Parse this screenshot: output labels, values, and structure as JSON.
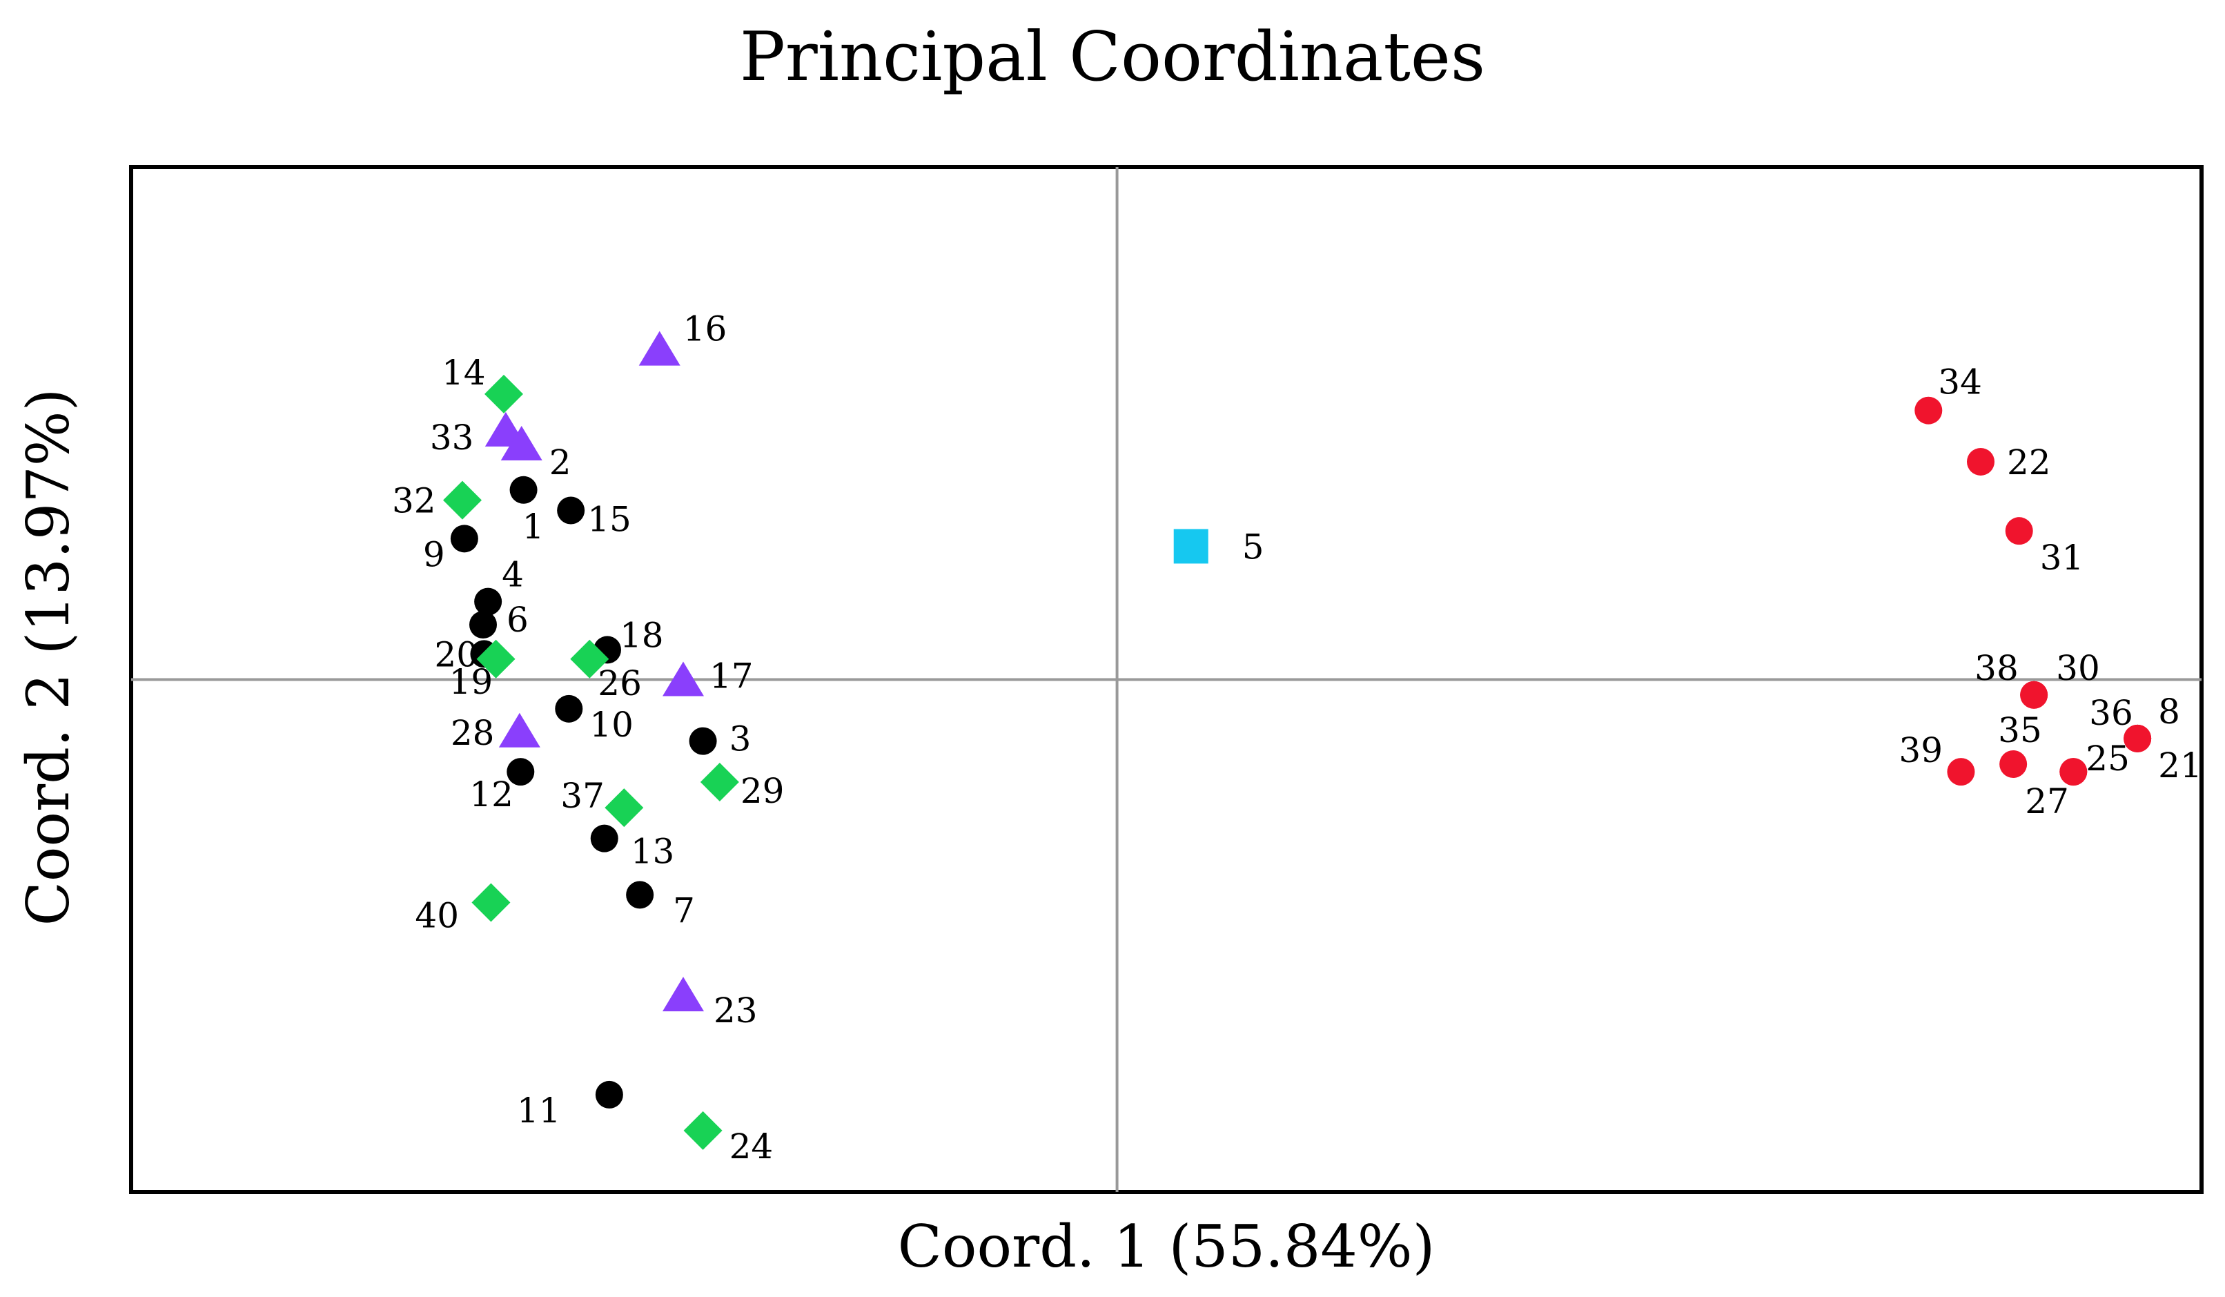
{
  "chart_data": {
    "type": "scatter",
    "title": "Principal Coordinates",
    "xlabel": "Coord. 1 (55.84%)",
    "ylabel": "Coord. 2 (13.97%)",
    "xlim": [
      -1.0,
      1.1
    ],
    "ylim": [
      -1.0,
      1.0
    ],
    "grid": false,
    "reference_lines": {
      "x": 0,
      "y": 0
    },
    "legend": null,
    "group_styles": [
      {
        "group": 1,
        "marker": "circle",
        "color": "#000000"
      },
      {
        "group": 2,
        "marker": "triangle",
        "color": "#8a3ffc"
      },
      {
        "group": 3,
        "marker": "diamond",
        "color": "#18d255"
      },
      {
        "group": 4,
        "marker": "square",
        "color": "#16c8f0"
      },
      {
        "group": 5,
        "marker": "circle",
        "color": "#f0142d"
      }
    ],
    "points": [
      {
        "label": "1",
        "x": -0.602,
        "y": 0.37,
        "group": 1,
        "label_dx": -2,
        "label_dy": 70
      },
      {
        "label": "4",
        "x": -0.638,
        "y": 0.152,
        "group": 1,
        "label_dx": 20,
        "label_dy": -22
      },
      {
        "label": "6",
        "x": -0.643,
        "y": 0.107,
        "group": 1,
        "label_dx": 34,
        "label_dy": 10
      },
      {
        "label": "20",
        "x": -0.642,
        "y": 0.05,
        "group": 1,
        "label_dx": -72,
        "label_dy": 18
      },
      {
        "label": "9",
        "x": -0.662,
        "y": 0.275,
        "group": 1,
        "label_dx": -60,
        "label_dy": 40
      },
      {
        "label": "15",
        "x": -0.554,
        "y": 0.33,
        "group": 1,
        "label_dx": 24,
        "label_dy": 30
      },
      {
        "label": "18",
        "x": -0.517,
        "y": 0.058,
        "group": 1,
        "label_dx": 18,
        "label_dy": -4
      },
      {
        "label": "10",
        "x": -0.556,
        "y": -0.057,
        "group": 1,
        "label_dx": 30,
        "label_dy": 40
      },
      {
        "label": "3",
        "x": -0.42,
        "y": -0.12,
        "group": 1,
        "label_dx": 38,
        "label_dy": 14
      },
      {
        "label": "12",
        "x": -0.605,
        "y": -0.18,
        "group": 1,
        "label_dx": -74,
        "label_dy": 50
      },
      {
        "label": "13",
        "x": -0.52,
        "y": -0.31,
        "group": 1,
        "label_dx": 38,
        "label_dy": 36
      },
      {
        "label": "7",
        "x": -0.484,
        "y": -0.42,
        "group": 1,
        "label_dx": 48,
        "label_dy": 40
      },
      {
        "label": "11",
        "x": -0.515,
        "y": -0.81,
        "group": 1,
        "label_dx": -134,
        "label_dy": 40
      },
      {
        "label": "16",
        "x": -0.464,
        "y": 0.645,
        "group": 2,
        "label_dx": 34,
        "label_dy": -12
      },
      {
        "label": "33",
        "x": -0.62,
        "y": 0.487,
        "group": 2,
        "label_dx": -110,
        "label_dy": 28
      },
      {
        "label": "2",
        "x": -0.604,
        "y": 0.46,
        "group": 2,
        "label_dx": 40,
        "label_dy": 44
      },
      {
        "label": "17",
        "x": -0.44,
        "y": 0.0,
        "group": 2,
        "label_dx": 38,
        "label_dy": 12
      },
      {
        "label": "28",
        "x": -0.606,
        "y": -0.1,
        "group": 2,
        "label_dx": -100,
        "label_dy": 20
      },
      {
        "label": "23",
        "x": -0.44,
        "y": -0.615,
        "group": 2,
        "label_dx": 44,
        "label_dy": 40
      },
      {
        "label": "14",
        "x": -0.622,
        "y": 0.557,
        "group": 3,
        "label_dx": -90,
        "label_dy": -14
      },
      {
        "label": "32",
        "x": -0.664,
        "y": 0.35,
        "group": 3,
        "label_dx": -102,
        "label_dy": 18
      },
      {
        "label": "19",
        "x": -0.63,
        "y": 0.04,
        "group": 3,
        "label_dx": -68,
        "label_dy": 50
      },
      {
        "label": "26",
        "x": -0.535,
        "y": 0.04,
        "group": 3,
        "label_dx": 12,
        "label_dy": 52
      },
      {
        "label": "29",
        "x": -0.403,
        "y": -0.2,
        "group": 3,
        "label_dx": 30,
        "label_dy": 30
      },
      {
        "label": "37",
        "x": -0.5,
        "y": -0.25,
        "group": 3,
        "label_dx": -92,
        "label_dy": 0
      },
      {
        "label": "40",
        "x": -0.635,
        "y": -0.435,
        "group": 3,
        "label_dx": -110,
        "label_dy": 36
      },
      {
        "label": "24",
        "x": -0.42,
        "y": -0.88,
        "group": 3,
        "label_dx": 38,
        "label_dy": 40
      },
      {
        "label": "5",
        "x": 0.075,
        "y": 0.26,
        "group": 4,
        "label_dx": 74,
        "label_dy": 18
      },
      {
        "label": "34",
        "x": 0.823,
        "y": 0.525,
        "group": 5,
        "label_dx": 14,
        "label_dy": -24
      },
      {
        "label": "22",
        "x": 0.876,
        "y": 0.425,
        "group": 5,
        "label_dx": 38,
        "label_dy": 18
      },
      {
        "label": "31",
        "x": 0.915,
        "y": 0.29,
        "group": 5,
        "label_dx": 30,
        "label_dy": 56
      },
      {
        "label": "30",
        "x": 0.93,
        "y": -0.03,
        "group": 5,
        "label_dx": 32,
        "label_dy": -22
      },
      {
        "label": "38",
        "x": 0.93,
        "y": -0.03,
        "group": 5,
        "label_dx": -86,
        "label_dy": -22
      },
      {
        "label": "36",
        "x": 1.035,
        "y": -0.115,
        "group": 5,
        "label_dx": -70,
        "label_dy": -20
      },
      {
        "label": "8",
        "x": 1.035,
        "y": -0.115,
        "group": 5,
        "label_dx": 30,
        "label_dy": -22
      },
      {
        "label": "21",
        "x": 1.035,
        "y": -0.115,
        "group": 5,
        "label_dx": 30,
        "label_dy": 56
      },
      {
        "label": "39",
        "x": 0.856,
        "y": -0.18,
        "group": 5,
        "label_dx": -90,
        "label_dy": -14
      },
      {
        "label": "35",
        "x": 0.909,
        "y": -0.165,
        "group": 5,
        "label_dx": -22,
        "label_dy": -32
      },
      {
        "label": "25",
        "x": 0.97,
        "y": -0.18,
        "group": 5,
        "label_dx": 18,
        "label_dy": -2
      },
      {
        "label": "27",
        "x": 0.97,
        "y": -0.18,
        "group": 5,
        "label_dx": -70,
        "label_dy": 60
      }
    ]
  }
}
